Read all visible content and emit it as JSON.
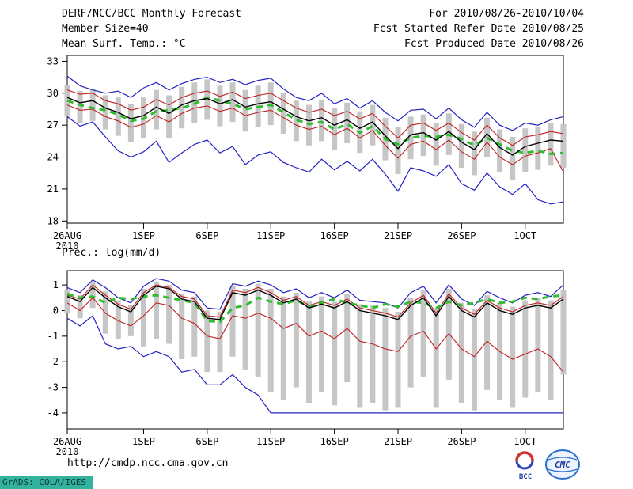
{
  "header": {
    "title": "DERF/NCC/BCC Monthly Forecast",
    "member_size": "Member Size=40",
    "temp_label": "Mean Surf. Temp.: °C",
    "for_range": "For 2010/08/26-2010/10/04",
    "fcst_started": "Fcst Started Refer Date 2010/08/25",
    "fcst_produced": "Fcst Produced Date 2010/08/26"
  },
  "footer": {
    "url": "http://cmdp.ncc.cma.gov.cn",
    "grads_stamp": "GrADS: COLA/IGES",
    "bcc_logo_text": "BCC",
    "cma_logo_text": "CMC"
  },
  "colors": {
    "ensemble_spread": "#c6c6c6",
    "minmax_line": "#2222c0",
    "quartile_line": "#c02020",
    "mean_line": "#000000",
    "climatology_line": "#2fbd2f",
    "stamp_background": "#33b2a0"
  },
  "chart_data": [
    {
      "type": "line",
      "title": "Mean Surf. Temp.: °C",
      "xlabel": "",
      "ylabel": "°C",
      "ylim": [
        18,
        33
      ],
      "yticks": [
        18,
        21,
        24,
        27,
        30,
        33
      ],
      "grid": false,
      "legend": "none",
      "x_ticks": [
        {
          "day": 0,
          "label": "26AUG",
          "sub": "2010"
        },
        {
          "day": 6,
          "label": "1SEP"
        },
        {
          "day": 11,
          "label": "6SEP"
        },
        {
          "day": 16,
          "label": "11SEP"
        },
        {
          "day": 21,
          "label": "16SEP"
        },
        {
          "day": 26,
          "label": "21SEP"
        },
        {
          "day": 31,
          "label": "26SEP"
        },
        {
          "day": 36,
          "label": "1OCT"
        }
      ],
      "dates": [
        "26AUG",
        "27AUG",
        "28AUG",
        "29AUG",
        "30AUG",
        "31AUG",
        "1SEP",
        "2SEP",
        "3SEP",
        "4SEP",
        "5SEP",
        "6SEP",
        "7SEP",
        "8SEP",
        "9SEP",
        "10SEP",
        "11SEP",
        "12SEP",
        "13SEP",
        "14SEP",
        "15SEP",
        "16SEP",
        "17SEP",
        "18SEP",
        "19SEP",
        "20SEP",
        "21SEP",
        "22SEP",
        "23SEP",
        "24SEP",
        "25SEP",
        "26SEP",
        "27SEP",
        "28SEP",
        "29SEP",
        "30SEP",
        "1OCT",
        "2OCT",
        "3OCT",
        "4OCT"
      ],
      "series": [
        {
          "name": "ensemble-spread",
          "type": "bar-range",
          "color": "#c6c6c6",
          "top": [
            30.8,
            30.2,
            30.4,
            29.8,
            29.6,
            29.0,
            29.6,
            30.3,
            29.8,
            30.6,
            31.0,
            31.3,
            30.7,
            31.0,
            30.3,
            30.7,
            31.0,
            30.0,
            29.3,
            28.9,
            29.4,
            28.6,
            29.1,
            28.3,
            28.9,
            27.7,
            26.8,
            27.8,
            28.0,
            27.2,
            28.1,
            27.1,
            26.4,
            27.7,
            26.6,
            25.9,
            26.7,
            26.8,
            27.2,
            27.1
          ],
          "bottom": [
            27.8,
            27.2,
            27.4,
            26.6,
            26.0,
            25.4,
            25.8,
            26.6,
            25.8,
            26.7,
            27.2,
            27.5,
            26.9,
            27.3,
            26.4,
            26.8,
            27.0,
            26.2,
            25.5,
            25.1,
            25.5,
            24.7,
            25.3,
            24.4,
            25.1,
            23.7,
            22.4,
            23.8,
            24.1,
            23.2,
            24.2,
            23.0,
            22.3,
            24.0,
            22.6,
            21.8,
            22.6,
            22.8,
            23.2,
            23.0
          ]
        },
        {
          "name": "ensemble-max",
          "type": "line",
          "color": "#2222c0",
          "width": 1.2,
          "values": [
            31.6,
            30.7,
            30.3,
            30.0,
            30.2,
            29.6,
            30.5,
            31.0,
            30.3,
            30.9,
            31.3,
            31.5,
            31.0,
            31.3,
            30.8,
            31.2,
            31.4,
            30.4,
            29.6,
            29.3,
            30.0,
            29.0,
            29.5,
            28.6,
            29.3,
            28.2,
            27.4,
            28.4,
            28.5,
            27.6,
            28.6,
            27.5,
            26.8,
            28.2,
            27.0,
            26.5,
            27.2,
            27.0,
            27.5,
            27.8
          ]
        },
        {
          "name": "ensemble-min",
          "type": "line",
          "color": "#2222c0",
          "width": 1.2,
          "values": [
            27.8,
            26.9,
            27.3,
            25.9,
            24.6,
            24.0,
            24.5,
            25.5,
            23.5,
            24.4,
            25.2,
            25.6,
            24.4,
            25.0,
            23.3,
            24.2,
            24.5,
            23.5,
            23.0,
            22.6,
            23.8,
            22.8,
            23.6,
            22.7,
            23.8,
            22.4,
            20.8,
            23.0,
            22.7,
            22.2,
            23.3,
            21.5,
            20.9,
            22.5,
            21.2,
            20.5,
            21.5,
            20.0,
            19.6,
            19.8
          ]
        },
        {
          "name": "upper-quartile",
          "type": "line",
          "color": "#c02020",
          "width": 1.1,
          "values": [
            30.3,
            29.9,
            30.0,
            29.3,
            29.0,
            28.4,
            28.7,
            29.4,
            28.9,
            29.6,
            30.0,
            30.2,
            29.7,
            30.1,
            29.5,
            29.8,
            30.0,
            29.3,
            28.6,
            28.2,
            28.5,
            27.9,
            28.3,
            27.6,
            28.1,
            26.9,
            25.8,
            27.0,
            27.2,
            26.5,
            27.2,
            26.3,
            25.6,
            27.0,
            25.8,
            25.1,
            25.9,
            26.1,
            26.4,
            26.2
          ]
        },
        {
          "name": "lower-quartile",
          "type": "line",
          "color": "#c02020",
          "width": 1.1,
          "values": [
            28.9,
            28.4,
            28.5,
            27.8,
            27.4,
            26.8,
            27.1,
            27.9,
            27.3,
            28.1,
            28.6,
            28.8,
            28.3,
            28.6,
            27.9,
            28.2,
            28.4,
            27.7,
            27.0,
            26.6,
            26.9,
            26.1,
            26.7,
            25.8,
            26.5,
            25.1,
            23.9,
            25.2,
            25.5,
            24.7,
            25.6,
            24.5,
            23.8,
            25.4,
            24.0,
            23.3,
            24.1,
            24.4,
            24.8,
            22.6
          ]
        },
        {
          "name": "climatology",
          "type": "line",
          "color": "#2fbd2f",
          "width": 3,
          "dash": "8 6",
          "values": [
            29.3,
            28.9,
            28.6,
            28.4,
            28.0,
            27.4,
            27.6,
            28.3,
            28.4,
            28.6,
            29.0,
            29.6,
            29.3,
            29.0,
            28.5,
            28.7,
            28.9,
            28.2,
            27.5,
            27.1,
            27.3,
            26.6,
            27.1,
            26.3,
            26.9,
            25.7,
            25.2,
            25.8,
            26.0,
            25.9,
            26.1,
            25.7,
            25.1,
            25.8,
            25.2,
            24.6,
            24.4,
            24.6,
            24.3,
            24.4
          ]
        },
        {
          "name": "ensemble-mean",
          "type": "line",
          "color": "#000000",
          "width": 1.4,
          "values": [
            29.6,
            29.1,
            29.3,
            28.6,
            28.2,
            27.6,
            27.9,
            28.7,
            28.1,
            28.9,
            29.3,
            29.5,
            29.0,
            29.4,
            28.7,
            29.0,
            29.2,
            28.5,
            27.8,
            27.4,
            27.7,
            27.0,
            27.5,
            26.7,
            27.3,
            26.0,
            24.8,
            26.1,
            26.3,
            25.6,
            26.4,
            25.4,
            24.7,
            26.2,
            24.9,
            24.2,
            25.0,
            25.3,
            25.6,
            25.5
          ]
        }
      ]
    },
    {
      "type": "line",
      "title": "Prec.: log(mm/d)",
      "xlabel": "",
      "ylabel": "log(mm/d)",
      "ylim": [
        -4,
        1
      ],
      "yticks": [
        -4,
        -3,
        -2,
        -1,
        0,
        1
      ],
      "grid": false,
      "legend": "none",
      "x_ticks": [
        {
          "day": 0,
          "label": "26AUG",
          "sub": "2010"
        },
        {
          "day": 6,
          "label": "1SEP"
        },
        {
          "day": 11,
          "label": "6SEP"
        },
        {
          "day": 16,
          "label": "11SEP"
        },
        {
          "day": 21,
          "label": "16SEP"
        },
        {
          "day": 26,
          "label": "21SEP"
        },
        {
          "day": 31,
          "label": "26SEP"
        },
        {
          "day": 36,
          "label": "1OCT"
        }
      ],
      "dates": [
        "26AUG",
        "27AUG",
        "28AUG",
        "29AUG",
        "30AUG",
        "31AUG",
        "1SEP",
        "2SEP",
        "3SEP",
        "4SEP",
        "5SEP",
        "6SEP",
        "7SEP",
        "8SEP",
        "9SEP",
        "10SEP",
        "11SEP",
        "12SEP",
        "13SEP",
        "14SEP",
        "15SEP",
        "16SEP",
        "17SEP",
        "18SEP",
        "19SEP",
        "20SEP",
        "21SEP",
        "22SEP",
        "23SEP",
        "24SEP",
        "25SEP",
        "26SEP",
        "27SEP",
        "28SEP",
        "29SEP",
        "30SEP",
        "1OCT",
        "2OCT",
        "3OCT",
        "4OCT"
      ],
      "series": [
        {
          "name": "ensemble-spread",
          "type": "bar-range",
          "color": "#c6c6c6",
          "top": [
            0.8,
            0.6,
            1.1,
            0.75,
            0.4,
            0.2,
            0.85,
            1.1,
            1.0,
            0.65,
            0.55,
            0.0,
            -0.05,
            0.95,
            0.85,
            1.05,
            0.85,
            0.55,
            0.7,
            0.35,
            0.55,
            0.35,
            0.65,
            0.25,
            0.2,
            0.1,
            -0.05,
            0.5,
            0.8,
            0.1,
            0.85,
            0.3,
            0.05,
            0.6,
            0.3,
            0.15,
            0.4,
            0.5,
            0.4,
            0.8
          ],
          "bottom": [
            -0.1,
            -0.3,
            0.1,
            -0.9,
            -1.1,
            -1.0,
            -1.4,
            -1.1,
            -1.3,
            -1.9,
            -1.8,
            -2.4,
            -2.4,
            -1.8,
            -2.3,
            -2.6,
            -3.2,
            -3.5,
            -3.0,
            -3.6,
            -3.2,
            -3.7,
            -2.8,
            -3.8,
            -3.6,
            -3.9,
            -3.8,
            -3.0,
            -2.6,
            -3.8,
            -2.7,
            -3.6,
            -3.9,
            -3.1,
            -3.5,
            -3.8,
            -3.4,
            -3.2,
            -3.5,
            -2.5
          ]
        },
        {
          "name": "ensemble-max",
          "type": "line",
          "color": "#2222c0",
          "width": 1.2,
          "values": [
            0.9,
            0.7,
            1.2,
            0.9,
            0.5,
            0.3,
            0.95,
            1.25,
            1.15,
            0.8,
            0.7,
            0.1,
            0.05,
            1.05,
            0.95,
            1.15,
            1.0,
            0.7,
            0.85,
            0.5,
            0.7,
            0.5,
            0.8,
            0.4,
            0.35,
            0.3,
            0.1,
            0.7,
            0.95,
            0.3,
            1.0,
            0.45,
            0.2,
            0.75,
            0.5,
            0.3,
            0.6,
            0.7,
            0.55,
            1.0
          ]
        },
        {
          "name": "ensemble-min",
          "type": "line",
          "color": "#2222c0",
          "width": 1.2,
          "values": [
            -0.3,
            -0.6,
            -0.2,
            -1.3,
            -1.5,
            -1.4,
            -1.8,
            -1.6,
            -1.8,
            -2.4,
            -2.3,
            -2.9,
            -2.9,
            -2.5,
            -3.0,
            -3.3,
            -4.0,
            -4.0,
            -4.0,
            -4.0,
            -4.0,
            -4.0,
            -4.0,
            -4.0,
            -4.0,
            -4.0,
            -4.0,
            -4.0,
            -4.0,
            -4.0,
            -4.0,
            -4.0,
            -4.0,
            -4.0,
            -4.0,
            -4.0,
            -4.0,
            -4.0,
            -4.0,
            -4.0
          ]
        },
        {
          "name": "upper-quartile",
          "type": "line",
          "color": "#c02020",
          "width": 1.1,
          "values": [
            0.6,
            0.45,
            1.0,
            0.6,
            0.25,
            0.05,
            0.7,
            1.0,
            0.9,
            0.55,
            0.45,
            -0.2,
            -0.25,
            0.8,
            0.7,
            0.9,
            0.7,
            0.4,
            0.55,
            0.2,
            0.35,
            0.2,
            0.45,
            0.1,
            0.0,
            -0.1,
            -0.25,
            0.3,
            0.6,
            -0.1,
            0.65,
            0.1,
            -0.15,
            0.4,
            0.1,
            -0.05,
            0.2,
            0.3,
            0.2,
            0.55
          ]
        },
        {
          "name": "lower-quartile",
          "type": "line",
          "color": "#c02020",
          "width": 1.1,
          "values": [
            0.3,
            0.0,
            0.5,
            -0.1,
            -0.4,
            -0.6,
            -0.2,
            0.3,
            0.2,
            -0.3,
            -0.5,
            -1.0,
            -1.1,
            -0.2,
            -0.3,
            -0.1,
            -0.3,
            -0.7,
            -0.5,
            -1.0,
            -0.8,
            -1.1,
            -0.7,
            -1.2,
            -1.3,
            -1.5,
            -1.6,
            -1.0,
            -0.8,
            -1.5,
            -0.9,
            -1.5,
            -1.8,
            -1.2,
            -1.6,
            -1.9,
            -1.7,
            -1.5,
            -1.8,
            -2.4
          ]
        },
        {
          "name": "climatology",
          "type": "line",
          "color": "#2fbd2f",
          "width": 3,
          "dash": "8 6",
          "values": [
            0.65,
            0.5,
            0.55,
            0.3,
            0.5,
            0.45,
            0.55,
            0.6,
            0.5,
            0.4,
            0.3,
            -0.4,
            -0.45,
            0.1,
            0.2,
            0.5,
            0.35,
            0.25,
            0.4,
            0.15,
            0.3,
            0.45,
            0.3,
            0.2,
            0.1,
            0.25,
            0.15,
            0.35,
            0.3,
            0.1,
            0.35,
            0.2,
            0.3,
            0.45,
            0.3,
            0.35,
            0.5,
            0.45,
            0.55,
            0.6
          ]
        },
        {
          "name": "ensemble-mean",
          "type": "line",
          "color": "#000000",
          "width": 1.4,
          "values": [
            0.55,
            0.35,
            0.9,
            0.5,
            0.15,
            -0.05,
            0.6,
            0.95,
            0.85,
            0.45,
            0.35,
            -0.3,
            -0.35,
            0.7,
            0.6,
            0.8,
            0.6,
            0.3,
            0.45,
            0.1,
            0.25,
            0.1,
            0.35,
            0.0,
            -0.1,
            -0.2,
            -0.35,
            0.2,
            0.5,
            -0.2,
            0.55,
            0.0,
            -0.25,
            0.3,
            0.0,
            -0.15,
            0.1,
            0.2,
            0.1,
            0.45
          ]
        }
      ]
    }
  ]
}
